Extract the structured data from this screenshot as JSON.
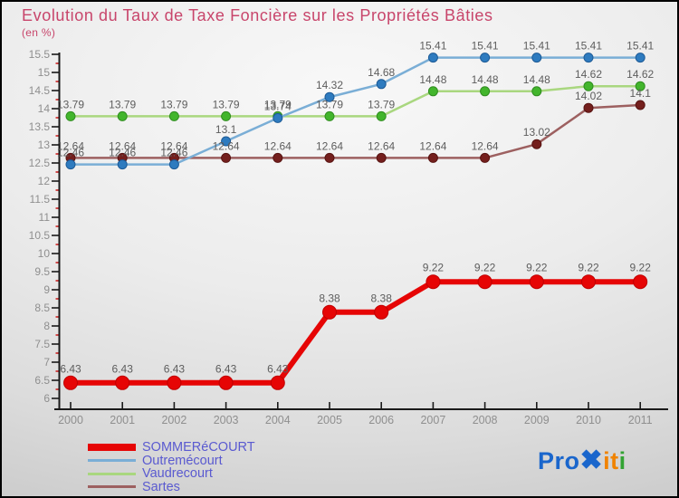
{
  "title": {
    "text": "Evolution du Taux de Taxe Foncière sur les Propriétés Bâties",
    "color": "#c8456b"
  },
  "subtitle": {
    "text": "(en %)"
  },
  "chart_data": {
    "type": "line",
    "x": [
      2000,
      2001,
      2002,
      2003,
      2004,
      2005,
      2006,
      2007,
      2008,
      2009,
      2010,
      2011
    ],
    "series": [
      {
        "name": "SOMMERéCOURT",
        "values": [
          6.43,
          6.43,
          6.43,
          6.43,
          6.43,
          8.38,
          8.38,
          9.22,
          9.22,
          9.22,
          9.22,
          9.22
        ],
        "line_color": "#e60505",
        "marker_color": "#e60505",
        "marker_stroke": "#c00000",
        "line_width": 6,
        "marker_radius": 7.5
      },
      {
        "name": "Outremécourt",
        "values": [
          12.46,
          12.46,
          12.46,
          13.1,
          13.74,
          14.32,
          14.68,
          15.41,
          15.41,
          15.41,
          15.41,
          15.41
        ],
        "line_color": "#7aaed6",
        "marker_color": "#2e7bbf",
        "marker_stroke": "#1c5a96",
        "line_width": 2.5,
        "marker_radius": 5
      },
      {
        "name": "Vaudrecourt",
        "values": [
          13.79,
          13.79,
          13.79,
          13.79,
          13.79,
          13.79,
          13.79,
          14.48,
          14.48,
          14.48,
          14.62,
          14.62
        ],
        "line_color": "#a9d77f",
        "marker_color": "#42b52c",
        "marker_stroke": "#2f8c1f",
        "line_width": 2.5,
        "marker_radius": 5
      },
      {
        "name": "Sartes",
        "values": [
          12.64,
          12.64,
          12.64,
          12.64,
          12.64,
          12.64,
          12.64,
          12.64,
          12.64,
          13.02,
          14.02,
          14.1
        ],
        "line_color": "#9d6060",
        "marker_color": "#741f1d",
        "marker_stroke": "#571311",
        "line_width": 2.5,
        "marker_radius": 5
      }
    ],
    "ylim": [
      6,
      15.5
    ],
    "y_major_step": 0.5,
    "y_minor_step": 0.25,
    "xlabel": "",
    "ylabel": "",
    "grid": false,
    "legend_position": "bottom-left",
    "axis_color": "#1a1a1a",
    "minor_tick_color": "#cc2222",
    "tick_label_color": "#8f8f8f",
    "data_label_color": "#5d5d5d"
  },
  "legend": {
    "text_color": "#5a5ad0",
    "items": [
      {
        "label": "SOMMERéCOURT",
        "color": "#e60505",
        "thickness": 8
      },
      {
        "label": "Outremécourt",
        "color": "#7aaed6",
        "thickness": 3
      },
      {
        "label": "Vaudrecourt",
        "color": "#a9d77f",
        "thickness": 3
      },
      {
        "label": "Sartes",
        "color": "#9d6060",
        "thickness": 3
      }
    ]
  },
  "logo": {
    "parts": [
      {
        "text": "Pro",
        "color": "#1a66cc"
      },
      {
        "text": "✖",
        "color": "#1a66cc"
      },
      {
        "text": "i",
        "color": "#f08300"
      },
      {
        "text": "t",
        "color": "#f08300"
      },
      {
        "text": "i",
        "color": "#33a333"
      }
    ]
  }
}
